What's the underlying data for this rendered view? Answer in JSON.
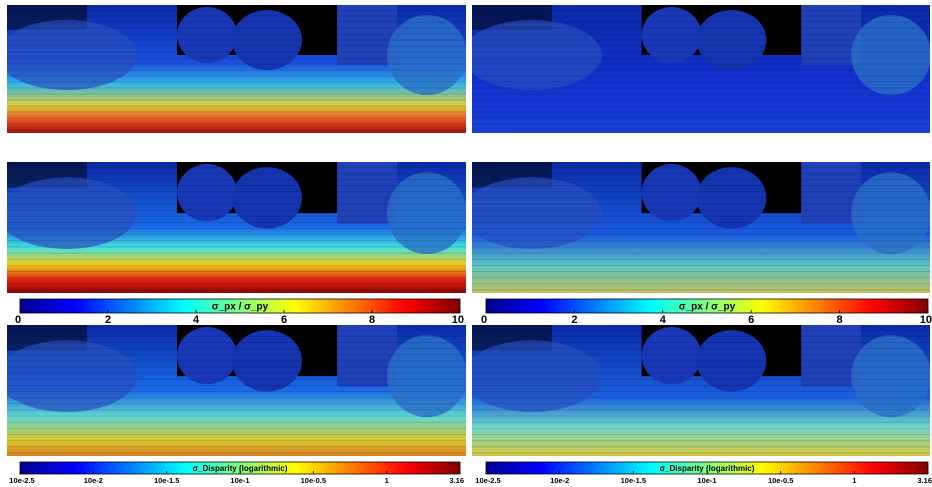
{
  "colorbars": [
    {
      "label": "σ_px / σ_py",
      "lim": [
        0,
        10
      ],
      "ticks": [
        0,
        2,
        4,
        6,
        8,
        10
      ]
    },
    {
      "label": "σ_px / σ_py",
      "lim": [
        0,
        10
      ],
      "ticks": [
        0,
        2,
        4,
        6,
        8,
        10
      ]
    },
    {
      "label": "σ_Disparity  (logarithmic)",
      "lim": [
        -2.5,
        0.5
      ],
      "ticks": [
        {
          "value": -2.5,
          "label": "10e-2.5"
        },
        {
          "value": -2,
          "label": "10e-2"
        },
        {
          "value": -1.5,
          "label": "10e-1.5"
        },
        {
          "value": -1,
          "label": "10e-1"
        },
        {
          "value": -0.5,
          "label": "10e-0.5"
        },
        {
          "value": 0,
          "label": "1"
        },
        {
          "value": 0.5,
          "label": "3.16"
        }
      ]
    },
    {
      "label": "σ_Disparity  (logarithmic)",
      "lim": [
        -2.5,
        0.5
      ],
      "ticks": [
        {
          "value": -2.5,
          "label": "10e-2.5"
        },
        {
          "value": -2,
          "label": "10e-2"
        },
        {
          "value": -1.5,
          "label": "10e-1.5"
        },
        {
          "value": -1,
          "label": "10e-1"
        },
        {
          "value": -0.5,
          "label": "10e-0.5"
        },
        {
          "value": 0,
          "label": "1"
        },
        {
          "value": 0.5,
          "label": "3.16"
        }
      ]
    }
  ]
}
